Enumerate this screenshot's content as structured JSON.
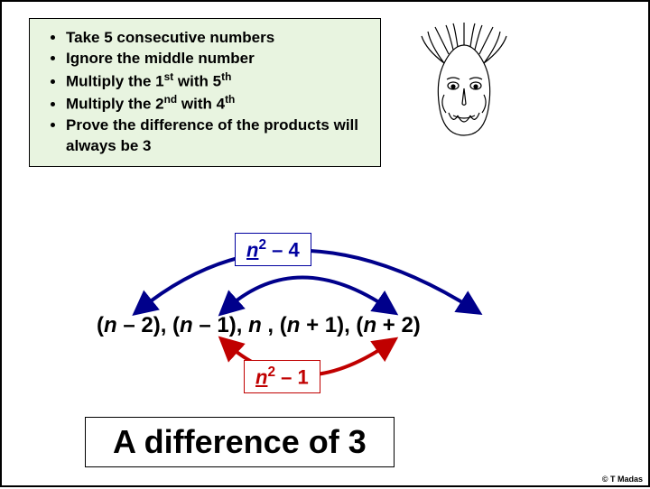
{
  "bullets": [
    "Take 5 consecutive numbers",
    "Ignore the middle number",
    "Multiply the 1<sup>st</sup> with 5<sup>th</sup>",
    "Multiply the 2<sup>nd</sup> with 4<sup>th</sup>",
    "Prove the difference of the products will always be 3"
  ],
  "formula_top": "<span class='n-var'>n</span><sup>2</sup> – 4",
  "sequence": "(<i>n</i> – 2), (<i>n</i> – 1), <i>n</i> , (<i>n</i> + 1), (<i>n</i> + 2)",
  "formula_bottom": "<span class='n-var'>n</span><sup>2</sup> – 1",
  "conclusion": "A difference of 3",
  "credit": "© T Madas",
  "colors": {
    "blue": "#00008b",
    "red": "#c00000",
    "box_bg": "#e8f4e0",
    "border": "#000000"
  },
  "arcs": {
    "blue_stroke": "#00008b",
    "red_stroke": "#c00000",
    "stroke_width": 4
  }
}
